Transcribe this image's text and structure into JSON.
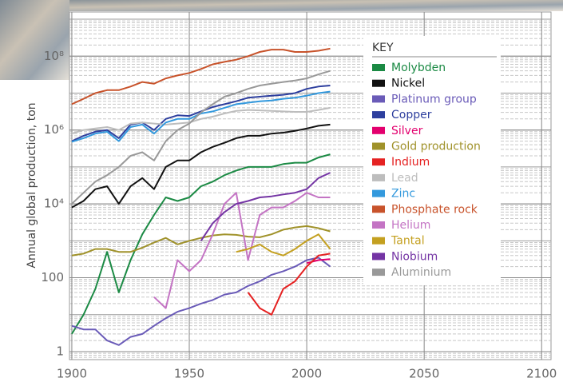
{
  "chart_data": {
    "type": "line",
    "ylabel": "Annual global production, ton",
    "legend_title": "KEY",
    "legend": "upper right",
    "yscale": "log",
    "grid": true,
    "xlim": [
      1899,
      2104
    ],
    "xticks": [
      1900,
      1950,
      2000,
      2050,
      2100
    ],
    "ylim": [
      0.607,
      1570000000
    ],
    "yticks": [
      1,
      100,
      {
        "value": 10000,
        "label": "10⁴"
      },
      {
        "value": 1000000,
        "label": "10⁶"
      },
      {
        "value": 100000000,
        "label": "10⁸"
      }
    ],
    "x": [
      1900,
      1905,
      1910,
      1915,
      1920,
      1925,
      1930,
      1935,
      1940,
      1945,
      1950,
      1955,
      1960,
      1965,
      1970,
      1975,
      1980,
      1985,
      1990,
      1995,
      2000,
      2005,
      2010
    ],
    "series": [
      {
        "name": "Molybden",
        "color": "#1b8a44",
        "values": [
          3,
          10,
          50,
          500,
          40,
          300,
          1500,
          5000,
          15000,
          12000,
          15000,
          30000,
          40000,
          60000,
          80000,
          100000,
          100000,
          100000,
          120000,
          130000,
          130000,
          180000,
          220000
        ]
      },
      {
        "name": "Nickel",
        "color": "#111111",
        "values": [
          8000,
          12000,
          25000,
          30000,
          10000,
          30000,
          50000,
          25000,
          100000,
          150000,
          150000,
          250000,
          350000,
          450000,
          600000,
          700000,
          700000,
          800000,
          850000,
          950000,
          1100000,
          1300000,
          1400000
        ]
      },
      {
        "name": "Platinum group",
        "color": "#6a5bb8",
        "values": [
          5,
          4,
          4,
          2,
          1.5,
          2.5,
          3,
          5,
          8,
          12,
          15,
          20,
          25,
          35,
          40,
          60,
          80,
          120,
          150,
          200,
          300,
          350,
          200
        ]
      },
      {
        "name": "Copper",
        "color": "#2e3f9e",
        "values": [
          500000,
          700000,
          900000,
          1000000,
          600000,
          1400000,
          1600000,
          1000000,
          2000000,
          2500000,
          2400000,
          3200000,
          4200000,
          5000000,
          6000000,
          7500000,
          8000000,
          8500000,
          9000000,
          10000000,
          13000000,
          15000000,
          16000000
        ]
      },
      {
        "name": "Silver",
        "color": "#e3006e",
        "values": [
          null,
          null,
          null,
          null,
          null,
          null,
          null,
          null,
          null,
          null,
          null,
          null,
          null,
          null,
          null,
          null,
          null,
          null,
          null,
          null,
          250,
          300,
          320
        ]
      },
      {
        "name": "Gold production",
        "color": "#a0922a",
        "values": [
          400,
          450,
          600,
          600,
          500,
          500,
          650,
          900,
          1200,
          800,
          1000,
          1200,
          1400,
          1500,
          1450,
          1300,
          1250,
          1500,
          2000,
          2300,
          2500,
          2200,
          1800
        ]
      },
      {
        "name": "Indium",
        "color": "#e52222",
        "values": [
          null,
          null,
          null,
          null,
          null,
          null,
          null,
          null,
          null,
          null,
          null,
          null,
          null,
          null,
          null,
          40,
          15,
          10,
          50,
          80,
          200,
          400,
          450
        ]
      },
      {
        "name": "Lead",
        "color": "#bdbdbd",
        "values": [
          800000,
          1000000,
          1100000,
          1200000,
          1000000,
          1500000,
          1600000,
          1500000,
          1400000,
          1500000,
          1600000,
          2000000,
          2300000,
          2800000,
          3300000,
          3500000,
          3400000,
          3300000,
          3200000,
          3100000,
          3100000,
          3500000,
          4000000
        ]
      },
      {
        "name": "Zinc",
        "color": "#3399dd",
        "values": [
          480000,
          600000,
          800000,
          900000,
          500000,
          1200000,
          1400000,
          800000,
          1600000,
          2000000,
          2000000,
          2800000,
          3200000,
          4000000,
          5000000,
          5500000,
          6000000,
          6300000,
          7000000,
          7500000,
          8500000,
          10000000,
          11000000
        ]
      },
      {
        "name": "Phosphate rock",
        "color": "#c8532b",
        "values": [
          5000000,
          7000000,
          10000000,
          12000000,
          12000000,
          15000000,
          20000000,
          18000000,
          25000000,
          30000000,
          35000000,
          45000000,
          60000000,
          70000000,
          80000000,
          100000000,
          130000000,
          150000000,
          150000000,
          130000000,
          130000000,
          140000000,
          160000000
        ]
      },
      {
        "name": "Helium",
        "color": "#c474c4",
        "values": [
          null,
          null,
          null,
          null,
          null,
          null,
          null,
          30,
          15,
          300,
          150,
          300,
          1500,
          10000,
          20000,
          300,
          5000,
          8000,
          8000,
          12000,
          20000,
          15000,
          15000
        ]
      },
      {
        "name": "Tantal",
        "color": "#c4a020",
        "values": [
          null,
          null,
          null,
          null,
          null,
          null,
          null,
          null,
          null,
          null,
          null,
          null,
          null,
          null,
          500,
          600,
          800,
          500,
          400,
          600,
          1000,
          1500,
          600
        ]
      },
      {
        "name": "Niobium",
        "color": "#7434a4",
        "values": [
          null,
          null,
          null,
          null,
          null,
          null,
          null,
          null,
          null,
          null,
          null,
          1000,
          3000,
          6000,
          10000,
          12000,
          15000,
          16000,
          18000,
          20000,
          25000,
          50000,
          70000
        ]
      },
      {
        "name": "Aluminium",
        "color": "#999999",
        "values": [
          10000,
          20000,
          40000,
          60000,
          100000,
          200000,
          250000,
          150000,
          500000,
          1000000,
          1500000,
          3000000,
          5000000,
          8000000,
          10000000,
          13000000,
          16000000,
          18000000,
          20000000,
          22000000,
          25000000,
          32000000,
          40000000
        ]
      }
    ]
  }
}
